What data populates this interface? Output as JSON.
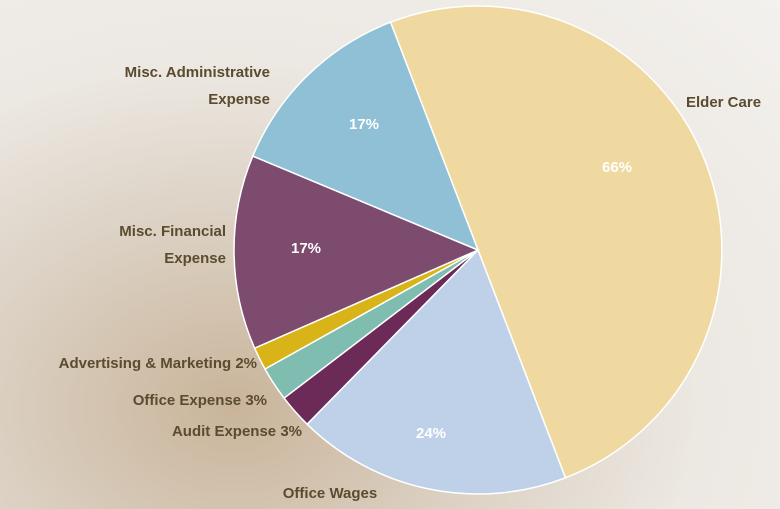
{
  "chart_data": {
    "type": "pie",
    "categories": [
      "Elder Care",
      "Office Wages",
      "Audit Expense",
      "Office Expense",
      "Advertising & Marketing",
      "Misc. Financial Expense",
      "Misc. Administrative Expense"
    ],
    "values": [
      66,
      24,
      3,
      3,
      2,
      17,
      17
    ],
    "value_labels": [
      "66%",
      "24%",
      "3%",
      "3%",
      "2%",
      "17%",
      "17%"
    ],
    "colors": [
      "#efd9a0",
      "#bfd1e8",
      "#6b2a58",
      "#80bdb1",
      "#d8b418",
      "#7d4b6e",
      "#8fc0d5"
    ]
  }
}
